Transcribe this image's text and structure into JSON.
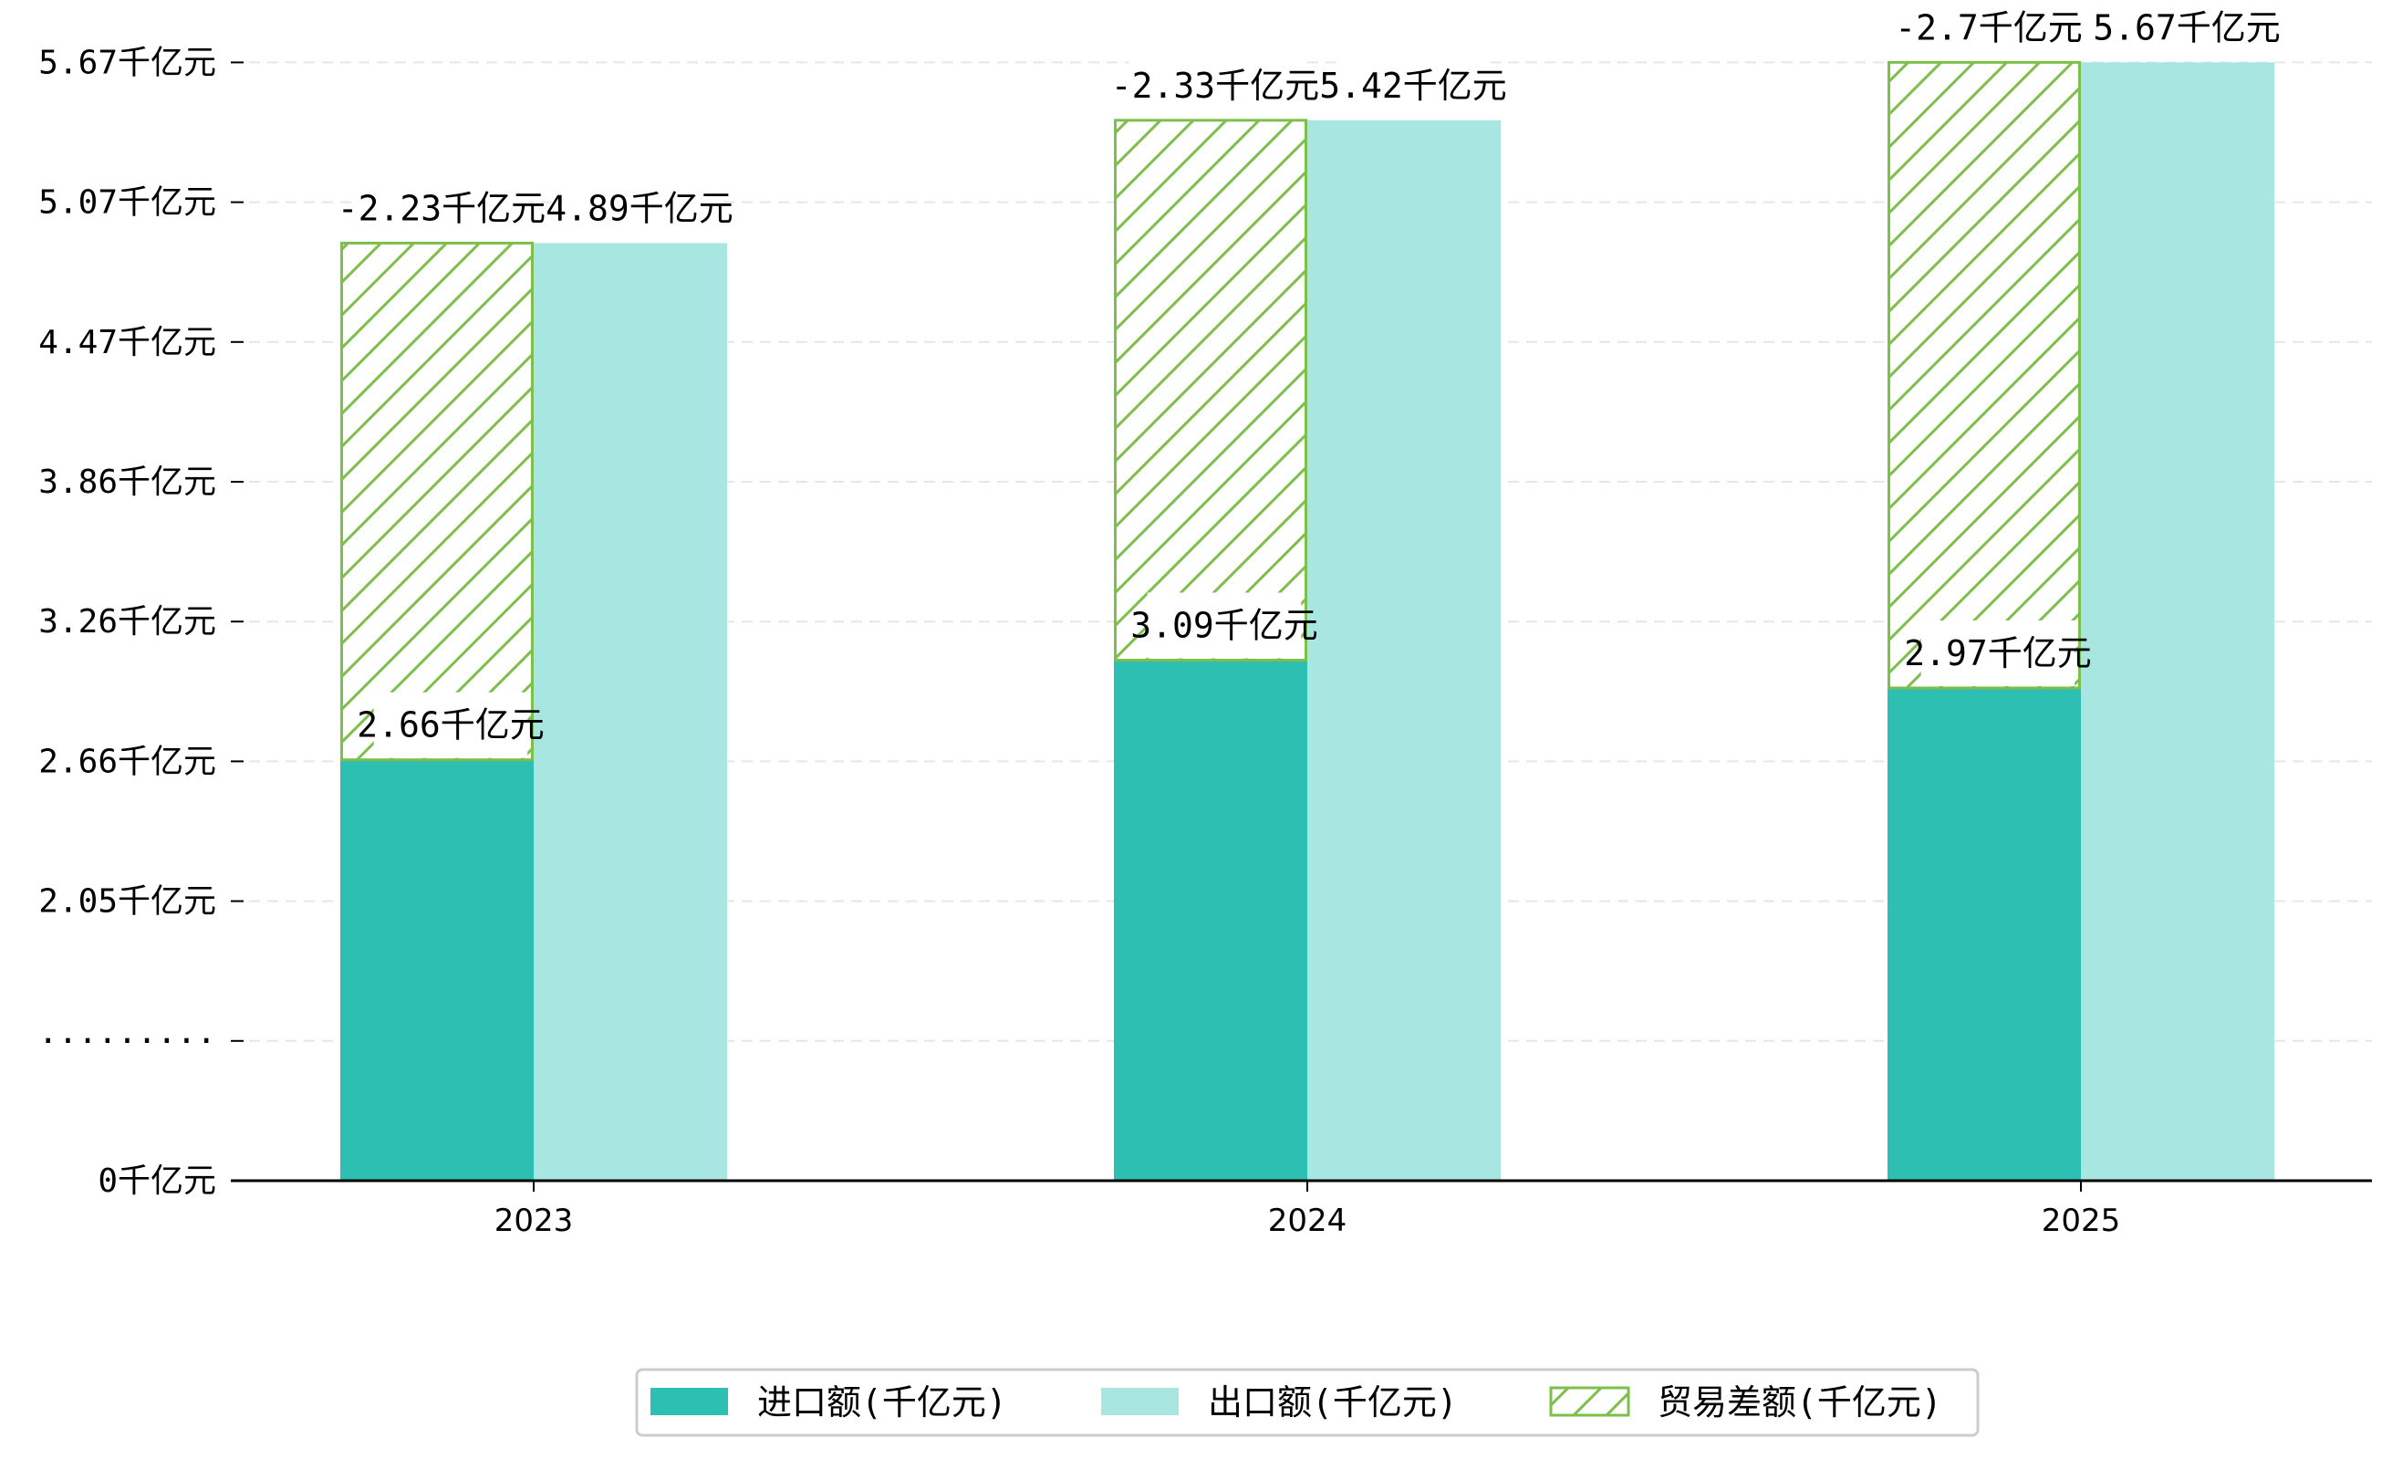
{
  "chart_data": {
    "type": "bar",
    "categories": [
      "2023",
      "2024",
      "2025"
    ],
    "series": [
      {
        "name": "进口额(千亿元)",
        "values": [
          2.66,
          3.09,
          2.97
        ],
        "color": "#2ebfb3",
        "labels": [
          "2.66千亿元",
          "3.09千亿元",
          "2.97千亿元"
        ]
      },
      {
        "name": "出口额(千亿元)",
        "values": [
          4.89,
          5.42,
          5.67
        ],
        "color": "#a8e6e1",
        "labels": [
          "4.89千亿元",
          "5.42千亿元",
          "5.67千亿元"
        ]
      },
      {
        "name": "贸易差额(千亿元)",
        "values": [
          -2.23,
          -2.33,
          -2.7
        ],
        "color": "#7cbf4a",
        "pattern": "hatch",
        "labels": [
          "-2.23千亿元",
          "-2.33千亿元",
          "-2.7千亿元"
        ]
      }
    ],
    "y_ticks": [
      "0千亿元",
      "·········",
      "2.05千亿元",
      "2.66千亿元",
      "3.26千亿元",
      "3.86千亿元",
      "4.47千亿元",
      "5.07千亿元",
      "5.67千亿元"
    ],
    "y_axis_break": true,
    "grid": "horizontal dashed",
    "legend_position": "bottom-center"
  }
}
